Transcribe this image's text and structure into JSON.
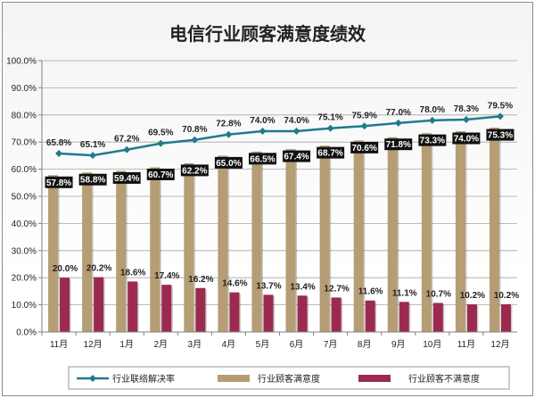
{
  "chart_data": {
    "type": "bar",
    "title": "电信行业顾客满意度绩效",
    "categories": [
      "11月",
      "12月",
      "1月",
      "2月",
      "3月",
      "4月",
      "5月",
      "6月",
      "7月",
      "8月",
      "9月",
      "10月",
      "11月",
      "12月"
    ],
    "y_ticks": [
      "0.0%",
      "10.0%",
      "20.0%",
      "30.0%",
      "40.0%",
      "50.0%",
      "60.0%",
      "70.0%",
      "80.0%",
      "90.0%",
      "100.0%"
    ],
    "ylim": [
      0,
      100
    ],
    "series": [
      {
        "name": "行业联络解决率",
        "type": "line",
        "color": "#1f7b8c",
        "values": [
          65.8,
          65.1,
          67.2,
          69.5,
          70.8,
          72.8,
          74.0,
          74.0,
          75.1,
          75.9,
          77.0,
          78.0,
          78.3,
          79.5
        ],
        "labels": [
          "65.8%",
          "65.1%",
          "67.2%",
          "69.5%",
          "70.8%",
          "72.8%",
          "74.0%",
          "74.0%",
          "75.1%",
          "75.9%",
          "77.0%",
          "78.0%",
          "78.3%",
          "79.5%"
        ]
      },
      {
        "name": "行业顾客满意度",
        "type": "bar",
        "color": "#b59d74",
        "values": [
          57.8,
          58.8,
          59.4,
          60.7,
          62.2,
          65.0,
          66.5,
          67.4,
          68.7,
          70.6,
          71.8,
          73.3,
          74.0,
          75.3
        ],
        "labels": [
          "57.8%",
          "58.8%",
          "59.4%",
          "60.7%",
          "62.2%",
          "65.0%",
          "66.5%",
          "67.4%",
          "68.7%",
          "70.6%",
          "71.8%",
          "73.3%",
          "74.0%",
          "75.3%"
        ]
      },
      {
        "name": "行业顾客不满意度",
        "type": "bar",
        "color": "#9b2a4e",
        "values": [
          20.0,
          20.2,
          18.6,
          17.4,
          16.2,
          14.6,
          13.7,
          13.4,
          12.7,
          11.6,
          11.1,
          10.7,
          10.2,
          10.2
        ],
        "labels": [
          "20.0%",
          "20.2%",
          "18.6%",
          "17.4%",
          "16.2%",
          "14.6%",
          "13.7%",
          "13.4%",
          "12.7%",
          "11.6%",
          "11.1%",
          "10.7%",
          "10.2%",
          "10.2%"
        ]
      }
    ],
    "legend": [
      "行业联络解决率",
      "行业顾客满意度",
      "行业顾客不满意度"
    ]
  }
}
